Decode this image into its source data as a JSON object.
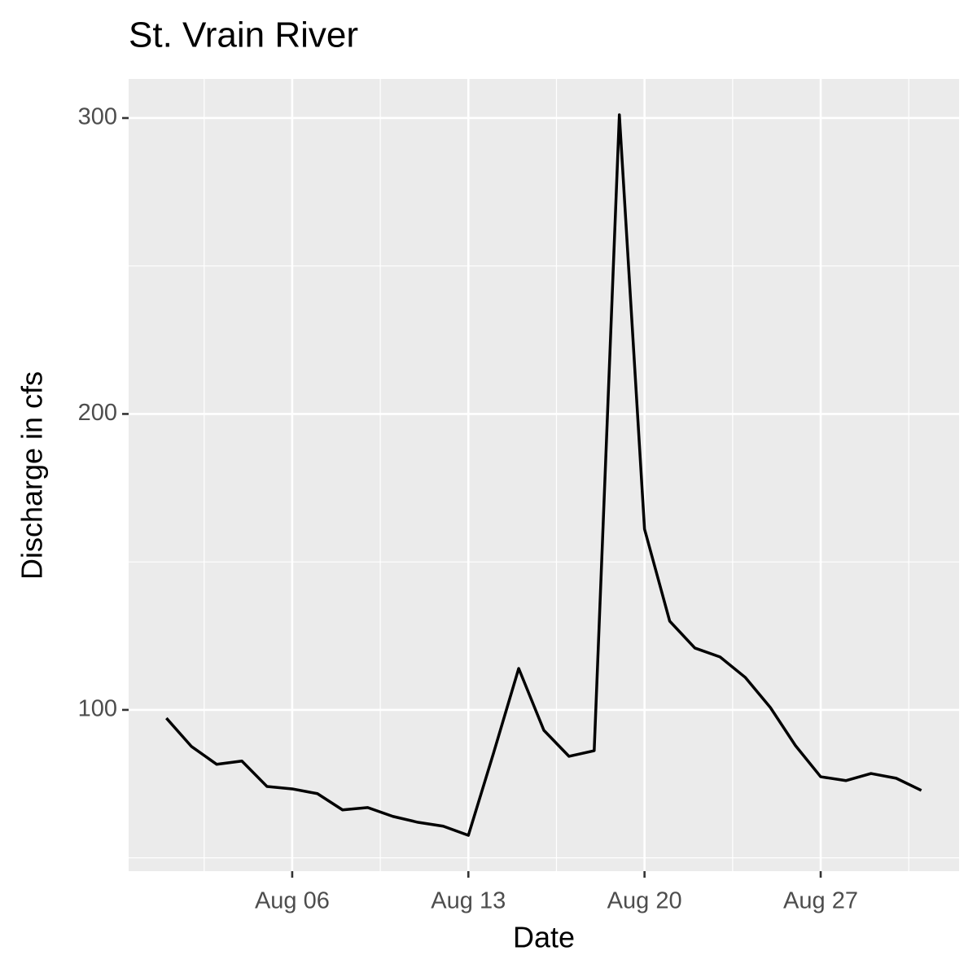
{
  "chart_data": {
    "type": "line",
    "title": "St. Vrain River",
    "x_label": "Date",
    "y_label": "Discharge in cfs",
    "x": [
      "Aug 01",
      "Aug 02",
      "Aug 03",
      "Aug 04",
      "Aug 05",
      "Aug 06",
      "Aug 07",
      "Aug 08",
      "Aug 09",
      "Aug 10",
      "Aug 11",
      "Aug 12",
      "Aug 13",
      "Aug 14",
      "Aug 15",
      "Aug 16",
      "Aug 17",
      "Aug 18",
      "Aug 19",
      "Aug 20",
      "Aug 21",
      "Aug 22",
      "Aug 23",
      "Aug 24",
      "Aug 25",
      "Aug 26",
      "Aug 27",
      "Aug 28",
      "Aug 29",
      "Aug 30",
      "Aug 31"
    ],
    "series": [
      {
        "color": "#000000",
        "values": [
          97.2,
          87.6,
          81.6,
          82.7,
          74.1,
          73.3,
          71.7,
          66.2,
          67.0,
          64.0,
          62.0,
          60.7,
          57.6,
          85.4,
          114.0,
          93.1,
          84.3,
          86.2,
          301.1,
          161.1,
          130.0,
          120.9,
          117.9,
          111.0,
          100.8,
          87.9,
          77.4,
          76.1,
          78.5,
          76.9,
          72.8
        ]
      }
    ],
    "xticks": [
      "Aug 06",
      "Aug 13",
      "Aug 20",
      "Aug 27"
    ],
    "ylim": [
      45.5,
      313.2
    ],
    "yticks": [
      100,
      200,
      300
    ],
    "grid": true
  }
}
